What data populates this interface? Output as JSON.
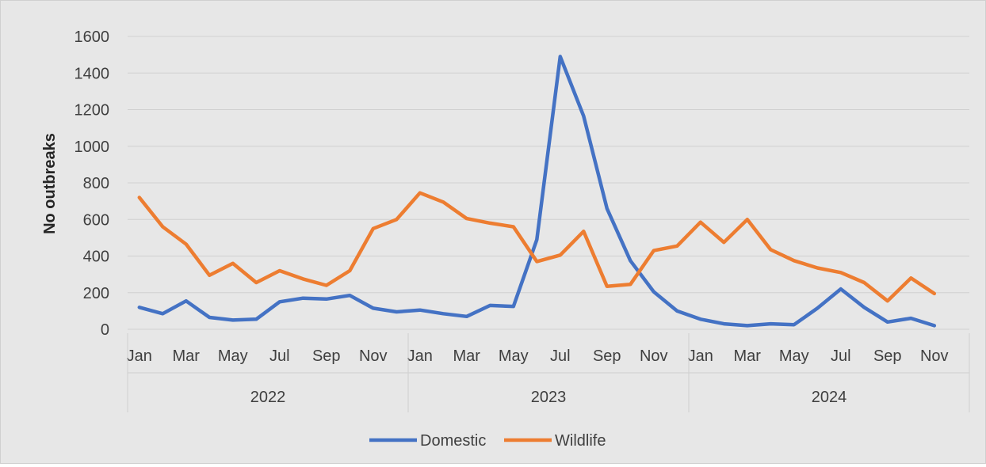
{
  "chart_data": {
    "type": "line",
    "ylabel": "No outbreaks",
    "xlabel": "",
    "ylim": [
      0,
      1600
    ],
    "yticks": [
      0,
      200,
      400,
      600,
      800,
      1000,
      1200,
      1400,
      1600
    ],
    "grid": true,
    "legend_position": "bottom",
    "x_month_labels": [
      "Jan",
      "Mar",
      "May",
      "Jul",
      "Sep",
      "Nov"
    ],
    "years": [
      "2022",
      "2023",
      "2024"
    ],
    "x": [
      "2022-01",
      "2022-02",
      "2022-03",
      "2022-04",
      "2022-05",
      "2022-06",
      "2022-07",
      "2022-08",
      "2022-09",
      "2022-10",
      "2022-11",
      "2022-12",
      "2023-01",
      "2023-02",
      "2023-03",
      "2023-04",
      "2023-05",
      "2023-06",
      "2023-07",
      "2023-08",
      "2023-09",
      "2023-10",
      "2023-11",
      "2023-12",
      "2024-01",
      "2024-02",
      "2024-03",
      "2024-04",
      "2024-05",
      "2024-06",
      "2024-07",
      "2024-08",
      "2024-09",
      "2024-10",
      "2024-11"
    ],
    "series": [
      {
        "name": "Domestic",
        "color": "#4472c4",
        "values": [
          120,
          85,
          155,
          65,
          50,
          55,
          150,
          170,
          165,
          185,
          115,
          95,
          105,
          85,
          70,
          130,
          125,
          490,
          1490,
          1165,
          660,
          375,
          205,
          100,
          55,
          30,
          20,
          30,
          25,
          115,
          220,
          120,
          40,
          60,
          20
        ]
      },
      {
        "name": "Wildlife",
        "color": "#ed7d31",
        "values": [
          720,
          560,
          465,
          295,
          360,
          255,
          320,
          275,
          240,
          320,
          550,
          600,
          745,
          695,
          605,
          580,
          560,
          370,
          405,
          535,
          235,
          245,
          430,
          455,
          585,
          475,
          600,
          435,
          375,
          335,
          310,
          255,
          155,
          280,
          195
        ]
      }
    ]
  }
}
